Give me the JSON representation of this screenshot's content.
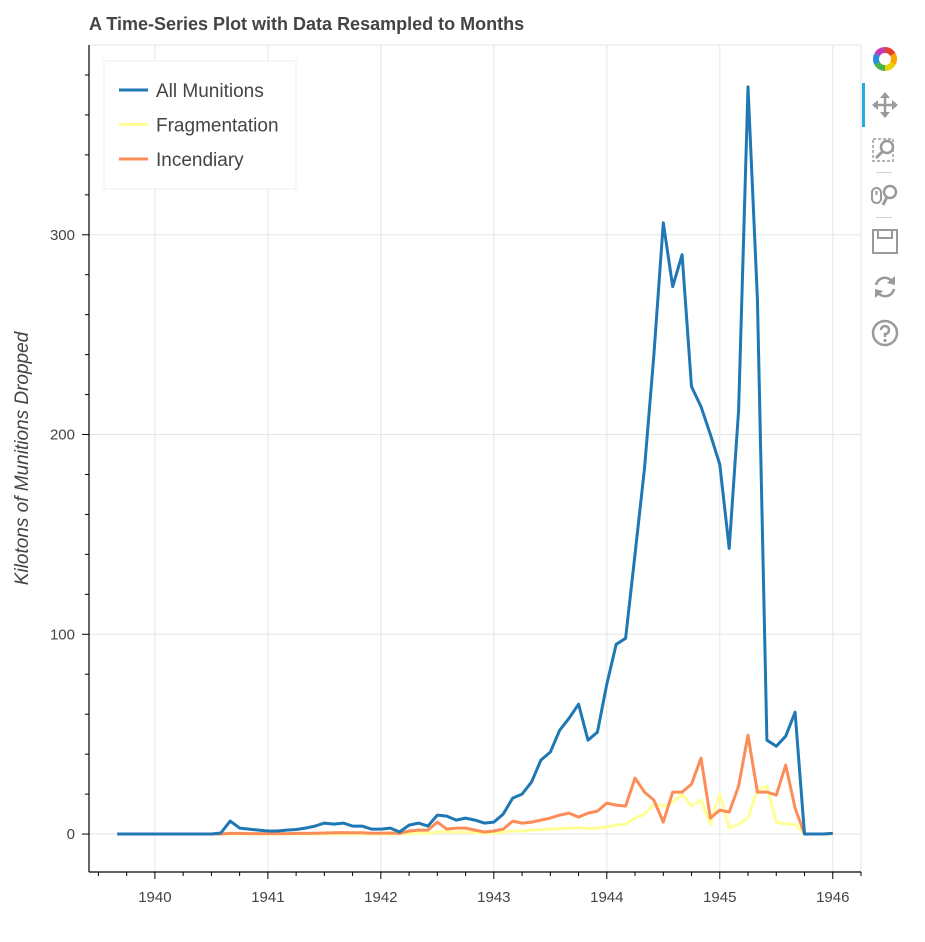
{
  "chart_data": {
    "type": "line",
    "title": "A Time-Series Plot with Data Resampled to Months",
    "xlabel": "",
    "ylabel": "Kilotons of Munitions Dropped",
    "x_ticks": [
      "1940",
      "1941",
      "1942",
      "1943",
      "1944",
      "1945",
      "1946"
    ],
    "y_ticks": [
      "0",
      "100",
      "200",
      "300"
    ],
    "xlim": [
      "1939-06",
      "1946-04"
    ],
    "ylim": [
      -19,
      395
    ],
    "grid": true,
    "legend_position": "top-left",
    "x": [
      "1939-09",
      "1939-10",
      "1939-11",
      "1939-12",
      "1940-01",
      "1940-02",
      "1940-03",
      "1940-04",
      "1940-05",
      "1940-06",
      "1940-07",
      "1940-08",
      "1940-09",
      "1940-10",
      "1940-11",
      "1940-12",
      "1941-01",
      "1941-02",
      "1941-03",
      "1941-04",
      "1941-05",
      "1941-06",
      "1941-07",
      "1941-08",
      "1941-09",
      "1941-10",
      "1941-11",
      "1941-12",
      "1942-01",
      "1942-02",
      "1942-03",
      "1942-04",
      "1942-05",
      "1942-06",
      "1942-07",
      "1942-08",
      "1942-09",
      "1942-10",
      "1942-11",
      "1942-12",
      "1943-01",
      "1943-02",
      "1943-03",
      "1943-04",
      "1943-05",
      "1943-06",
      "1943-07",
      "1943-08",
      "1943-09",
      "1943-10",
      "1943-11",
      "1943-12",
      "1944-01",
      "1944-02",
      "1944-03",
      "1944-04",
      "1944-05",
      "1944-06",
      "1944-07",
      "1944-08",
      "1944-09",
      "1944-10",
      "1944-11",
      "1944-12",
      "1945-01",
      "1945-02",
      "1945-03",
      "1945-04",
      "1945-05",
      "1945-06",
      "1945-07",
      "1945-08",
      "1945-09",
      "1945-10",
      "1945-11",
      "1945-12",
      "1946-01"
    ],
    "series": [
      {
        "name": "All Munitions",
        "color": "#1f77b4",
        "values": [
          0,
          0,
          0,
          0,
          0,
          0,
          0,
          0,
          0,
          0,
          0,
          0.5,
          6.5,
          3,
          2.5,
          2,
          1.5,
          1.5,
          2,
          2.3,
          3,
          4,
          5.5,
          5,
          5.5,
          4,
          4,
          2.5,
          2.5,
          3,
          1,
          4.5,
          5.5,
          4,
          9.5,
          9,
          7,
          8,
          7,
          5.5,
          6,
          10,
          18,
          20,
          26,
          37,
          41,
          52,
          58,
          65,
          47,
          51,
          75,
          95,
          98,
          140,
          183,
          240,
          306,
          274,
          290,
          224,
          214,
          200,
          185,
          143,
          212,
          374,
          268,
          47,
          44,
          49,
          61,
          0,
          0,
          0,
          0.3
        ]
      },
      {
        "name": "Fragmentation",
        "color": "#ffff99",
        "values": [
          0,
          0,
          0,
          0,
          0,
          0,
          0,
          0,
          0,
          0,
          0,
          0,
          0,
          0,
          0,
          0,
          0,
          0,
          0,
          0,
          0,
          0,
          0,
          0,
          0,
          0,
          0,
          0,
          0,
          0,
          0,
          0.2,
          0.5,
          0.3,
          1,
          1.2,
          0.8,
          1,
          0.6,
          0.3,
          0.4,
          1,
          1.5,
          1.5,
          2,
          2.2,
          2.5,
          2.8,
          3,
          3.2,
          2.8,
          3,
          3.5,
          4.5,
          5,
          8,
          10,
          15,
          14,
          16,
          20,
          14,
          17,
          5,
          20,
          3,
          5,
          8,
          22,
          24,
          6,
          5,
          5,
          0,
          0,
          0,
          0
        ]
      },
      {
        "name": "Incendiary",
        "color": "#fc8d59",
        "values": [
          0,
          0,
          0,
          0,
          0,
          0,
          0,
          0,
          0,
          0,
          0,
          0,
          0.3,
          0.3,
          0.2,
          0.2,
          0.2,
          0.2,
          0.2,
          0.3,
          0.3,
          0.4,
          0.5,
          0.6,
          0.7,
          0.6,
          0.6,
          0.4,
          0.4,
          0.5,
          0.3,
          1.5,
          2,
          2,
          6,
          2.5,
          3,
          3,
          2,
          1,
          1.5,
          2.5,
          6.5,
          5.5,
          6,
          7,
          8,
          9.5,
          10.5,
          8.5,
          10.5,
          11.5,
          15.5,
          14.5,
          14,
          28,
          21,
          17,
          6,
          21,
          21,
          25,
          38,
          8,
          12,
          11,
          24,
          49.5,
          21,
          21,
          19.5,
          34.5,
          13,
          0,
          0,
          0,
          0.3
        ]
      }
    ]
  },
  "toolbar": {
    "tools": [
      {
        "name": "bokeh-logo",
        "active": false
      },
      {
        "name": "pan",
        "active": true
      },
      {
        "name": "box-zoom",
        "active": false
      },
      {
        "name": "wheel-zoom",
        "active": false
      },
      {
        "name": "save",
        "active": false
      },
      {
        "name": "reset",
        "active": false
      },
      {
        "name": "help",
        "active": false
      }
    ]
  }
}
